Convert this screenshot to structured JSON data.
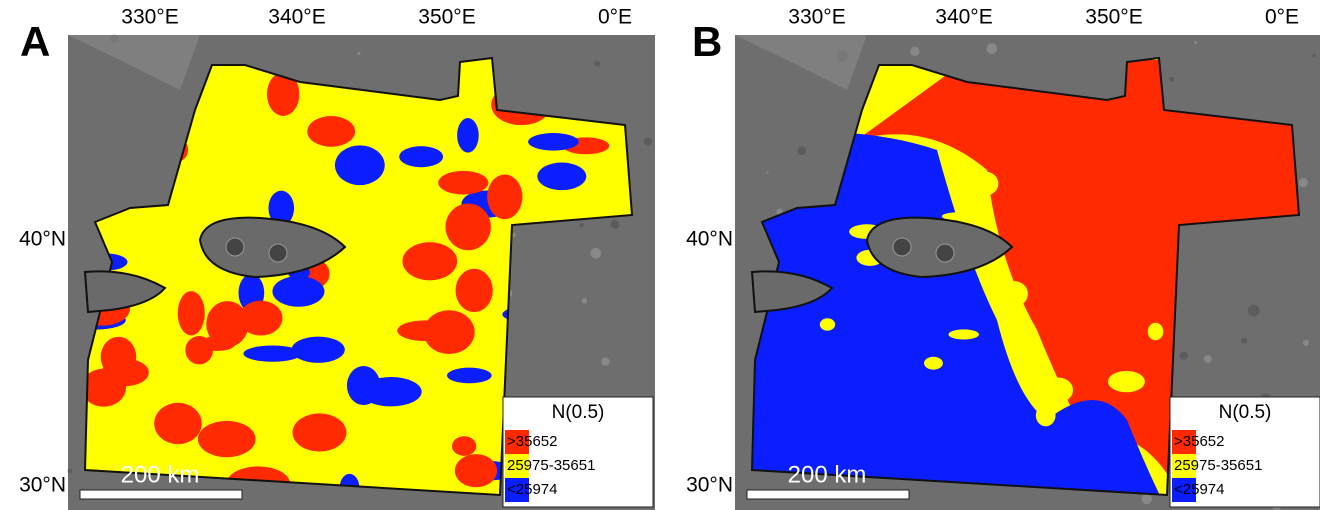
{
  "panels": [
    {
      "label": "A",
      "lon_labels": [
        "330°E",
        "340°E",
        "350°E",
        "0°E"
      ],
      "lat_labels": [
        "40°N",
        "30°N"
      ],
      "scale_bar": "200 km",
      "legend": {
        "title": "N(0.5)",
        "entries": [
          {
            "label": ">35652",
            "color": "#ff2a00"
          },
          {
            "label": "25975-35651",
            "color": "#ffff00"
          },
          {
            "label": "<25974",
            "color": "#0a1eff"
          }
        ]
      }
    },
    {
      "label": "B",
      "lon_labels": [
        "330°E",
        "340°E",
        "350°E",
        "0°E"
      ],
      "lat_labels": [
        "40°N",
        "30°N"
      ],
      "scale_bar": "200 km",
      "legend": {
        "title": "N(0.5)",
        "entries": [
          {
            "label": ">35652",
            "color": "#ff2a00"
          },
          {
            "label": "25975-35651",
            "color": "#ffff00"
          },
          {
            "label": "<25974",
            "color": "#0a1eff"
          }
        ]
      }
    }
  ]
}
